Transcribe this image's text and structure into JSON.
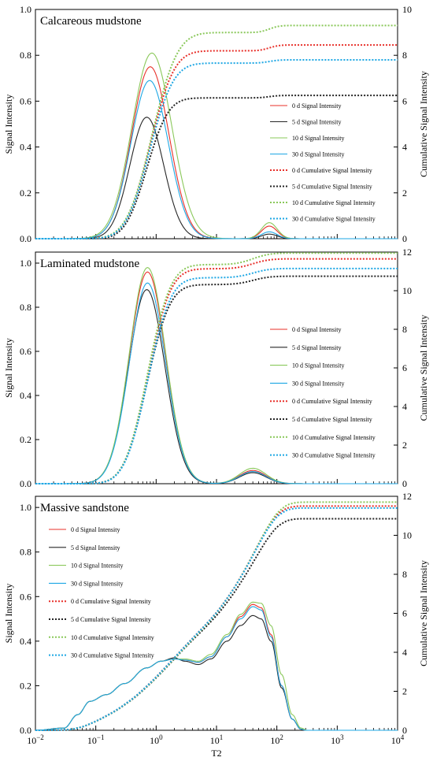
{
  "chart_data": {
    "type": "line",
    "xlabel": "T2",
    "xscale": "log",
    "xlim": [
      0.01,
      10000
    ],
    "x_ticks": [
      {
        "base": "10",
        "exp": "−2"
      },
      {
        "base": "10",
        "exp": "−1"
      },
      {
        "base": "10",
        "exp": "0"
      },
      {
        "base": "10",
        "exp": "1"
      },
      {
        "base": "10",
        "exp": "2"
      },
      {
        "base": "10",
        "exp": "3"
      },
      {
        "base": "10",
        "exp": "4"
      }
    ],
    "ylabel_left": "Signal Intensity",
    "ylabel_right": "Cumulative Signal Intensity",
    "series_colors": {
      "0 d": "#e8302a",
      "5 d": "#262626",
      "10 d": "#8ac85a",
      "30 d": "#1ea7e4"
    },
    "panels": [
      {
        "title": "Calcareous mudstone",
        "left_ticks": [
          "0.0",
          "0.2",
          "0.4",
          "0.6",
          "0.8",
          "1.0"
        ],
        "left_lim": [
          0,
          1.0
        ],
        "right_ticks": [
          "0",
          "2",
          "4",
          "6",
          "8",
          "10"
        ],
        "right_lim": [
          0,
          10
        ],
        "legend_position": "right-middle",
        "legend": [
          "0 d Signal Intensity",
          "5 d Signal Intensity",
          "10 d Signal Intensity",
          "30 d Signal Intensity",
          "0 d Cumulative Signal Intensity",
          "5 d Cumulative Signal Intensity",
          "10 d Cumulative Signal Intensity",
          "30 d Cumulative Signal Intensity"
        ],
        "signal": [
          {
            "name": "0 d Signal Intensity",
            "color_key": "0 d",
            "peaks": [
              {
                "center": 0.8,
                "amp": 0.75,
                "sigma": 0.31
              },
              {
                "center": 75,
                "amp": 0.055,
                "sigma": 0.13
              }
            ]
          },
          {
            "name": "5 d Signal Intensity",
            "color_key": "5 d",
            "peaks": [
              {
                "center": 0.7,
                "amp": 0.53,
                "sigma": 0.28
              },
              {
                "center": 75,
                "amp": 0.02,
                "sigma": 0.13
              }
            ]
          },
          {
            "name": "10 d Signal Intensity",
            "color_key": "10 d",
            "peaks": [
              {
                "center": 0.85,
                "amp": 0.81,
                "sigma": 0.33
              },
              {
                "center": 75,
                "amp": 0.07,
                "sigma": 0.13
              }
            ]
          },
          {
            "name": "30 d Signal Intensity",
            "color_key": "30 d",
            "peaks": [
              {
                "center": 0.78,
                "amp": 0.69,
                "sigma": 0.31
              },
              {
                "center": 75,
                "amp": 0.03,
                "sigma": 0.13
              }
            ]
          }
        ],
        "cumulative": [
          {
            "name": "0 d Cumulative Signal Intensity",
            "color_key": "0 d",
            "plateau1": 7.85,
            "final": 8.45
          },
          {
            "name": "5 d Cumulative Signal Intensity",
            "color_key": "5 d",
            "plateau1": 6.2,
            "final": 6.25
          },
          {
            "name": "10 d Cumulative Signal Intensity",
            "color_key": "10 d",
            "plateau1": 8.95,
            "final": 9.3
          },
          {
            "name": "30 d Cumulative Signal Intensity",
            "color_key": "30 d",
            "plateau1": 7.65,
            "final": 7.8
          }
        ]
      },
      {
        "title": "Laminated mudstone",
        "left_ticks": [
          "0.0",
          "0.2",
          "0.4",
          "0.6",
          "0.8",
          "1.0"
        ],
        "left_lim": [
          0,
          1.05
        ],
        "right_ticks": [
          "0",
          "2",
          "4",
          "6",
          "8",
          "10",
          "12"
        ],
        "right_lim": [
          0,
          12
        ],
        "legend_position": "right-middle",
        "legend": [
          "0 d Signal Intensity",
          "5 d Signal Intensity",
          "10 d Signal Intensity",
          "30 d Signal Intensity",
          "0 d Cumulative Signal Intensity",
          "5 d Cumulative Signal Intensity",
          "10 d Cumulative Signal Intensity",
          "30 d Cumulative Signal Intensity"
        ],
        "signal": [
          {
            "name": "0 d Signal Intensity",
            "color_key": "0 d",
            "peaks": [
              {
                "center": 0.72,
                "amp": 0.96,
                "sigma": 0.3
              },
              {
                "center": 40,
                "amp": 0.06,
                "sigma": 0.22
              }
            ]
          },
          {
            "name": "5 d Signal Intensity",
            "color_key": "5 d",
            "peaks": [
              {
                "center": 0.7,
                "amp": 0.88,
                "sigma": 0.3
              },
              {
                "center": 40,
                "amp": 0.05,
                "sigma": 0.22
              }
            ]
          },
          {
            "name": "10 d Signal Intensity",
            "color_key": "10 d",
            "peaks": [
              {
                "center": 0.72,
                "amp": 0.98,
                "sigma": 0.3
              },
              {
                "center": 40,
                "amp": 0.07,
                "sigma": 0.22
              }
            ]
          },
          {
            "name": "30 d Signal Intensity",
            "color_key": "30 d",
            "peaks": [
              {
                "center": 0.72,
                "amp": 0.91,
                "sigma": 0.3
              },
              {
                "center": 40,
                "amp": 0.055,
                "sigma": 0.22
              }
            ]
          }
        ],
        "cumulative": [
          {
            "name": "0 d Cumulative Signal Intensity",
            "color_key": "0 d",
            "plateau1": 11.0,
            "final": 11.65
          },
          {
            "name": "5 d Cumulative Signal Intensity",
            "color_key": "5 d",
            "plateau1": 10.2,
            "final": 10.75
          },
          {
            "name": "10 d Cumulative Signal Intensity",
            "color_key": "10 d",
            "plateau1": 11.3,
            "final": 11.95
          },
          {
            "name": "30 d Cumulative Signal Intensity",
            "color_key": "30 d",
            "plateau1": 10.6,
            "final": 11.15
          }
        ]
      },
      {
        "title": "Massive sandstone",
        "left_ticks": [
          "0.0",
          "0.2",
          "0.4",
          "0.6",
          "0.8",
          "1.0"
        ],
        "left_lim": [
          0,
          1.05
        ],
        "right_ticks": [
          "0",
          "2",
          "4",
          "6",
          "8",
          "10",
          "12"
        ],
        "right_lim": [
          0,
          12
        ],
        "legend_position": "left-middle",
        "legend": [
          "0 d Signal Intensity",
          "5 d Signal Intensity",
          "10 d Signal Intensity",
          "30 d Signal Intensity",
          "0 d Cumulative Signal Intensity",
          "5 d Cumulative Signal Intensity",
          "10 d Cumulative Signal Intensity",
          "30 d Cumulative Signal Intensity"
        ],
        "signal": [
          {
            "name": "0 d Signal Intensity",
            "color_key": "0 d",
            "points": [
              [
                0.01,
                0
              ],
              [
                0.03,
                0.01
              ],
              [
                0.05,
                0.07
              ],
              [
                0.08,
                0.13
              ],
              [
                0.15,
                0.16
              ],
              [
                0.3,
                0.21
              ],
              [
                0.7,
                0.28
              ],
              [
                1.2,
                0.31
              ],
              [
                2,
                0.32
              ],
              [
                3,
                0.315
              ],
              [
                5,
                0.305
              ],
              [
                8,
                0.33
              ],
              [
                15,
                0.42
              ],
              [
                25,
                0.51
              ],
              [
                40,
                0.565
              ],
              [
                55,
                0.55
              ],
              [
                80,
                0.43
              ],
              [
                120,
                0.2
              ],
              [
                180,
                0.05
              ],
              [
                250,
                0.005
              ],
              [
                300,
                0
              ],
              [
                10000,
                0
              ]
            ]
          },
          {
            "name": "5 d Signal Intensity",
            "color_key": "5 d",
            "points": [
              [
                0.01,
                0
              ],
              [
                0.03,
                0.01
              ],
              [
                0.05,
                0.07
              ],
              [
                0.08,
                0.13
              ],
              [
                0.15,
                0.16
              ],
              [
                0.3,
                0.21
              ],
              [
                0.7,
                0.28
              ],
              [
                1.2,
                0.31
              ],
              [
                2,
                0.325
              ],
              [
                3,
                0.31
              ],
              [
                5,
                0.295
              ],
              [
                8,
                0.32
              ],
              [
                15,
                0.4
              ],
              [
                25,
                0.47
              ],
              [
                40,
                0.515
              ],
              [
                55,
                0.5
              ],
              [
                80,
                0.4
              ],
              [
                120,
                0.19
              ],
              [
                180,
                0.05
              ],
              [
                250,
                0.005
              ],
              [
                300,
                0
              ],
              [
                10000,
                0
              ]
            ]
          },
          {
            "name": "10 d Signal Intensity",
            "color_key": "10 d",
            "points": [
              [
                0.01,
                0
              ],
              [
                0.03,
                0.01
              ],
              [
                0.05,
                0.07
              ],
              [
                0.08,
                0.13
              ],
              [
                0.15,
                0.16
              ],
              [
                0.3,
                0.21
              ],
              [
                0.7,
                0.28
              ],
              [
                1.2,
                0.31
              ],
              [
                2,
                0.32
              ],
              [
                3,
                0.32
              ],
              [
                5,
                0.31
              ],
              [
                8,
                0.34
              ],
              [
                15,
                0.43
              ],
              [
                25,
                0.52
              ],
              [
                40,
                0.575
              ],
              [
                55,
                0.57
              ],
              [
                80,
                0.47
              ],
              [
                120,
                0.25
              ],
              [
                180,
                0.07
              ],
              [
                250,
                0.01
              ],
              [
                320,
                0
              ],
              [
                10000,
                0
              ]
            ]
          },
          {
            "name": "30 d Signal Intensity",
            "color_key": "30 d",
            "points": [
              [
                0.01,
                0
              ],
              [
                0.03,
                0.01
              ],
              [
                0.05,
                0.07
              ],
              [
                0.08,
                0.13
              ],
              [
                0.15,
                0.16
              ],
              [
                0.3,
                0.21
              ],
              [
                0.7,
                0.28
              ],
              [
                1.2,
                0.31
              ],
              [
                2,
                0.32
              ],
              [
                3,
                0.315
              ],
              [
                5,
                0.305
              ],
              [
                8,
                0.33
              ],
              [
                15,
                0.42
              ],
              [
                25,
                0.5
              ],
              [
                40,
                0.555
              ],
              [
                55,
                0.54
              ],
              [
                80,
                0.42
              ],
              [
                120,
                0.2
              ],
              [
                180,
                0.05
              ],
              [
                250,
                0.005
              ],
              [
                300,
                0
              ],
              [
                10000,
                0
              ]
            ]
          }
        ],
        "cumulative": [
          {
            "name": "0 d Cumulative Signal Intensity",
            "color_key": "0 d",
            "final": 11.5
          },
          {
            "name": "5 d Cumulative Signal Intensity",
            "color_key": "5 d",
            "final": 10.85
          },
          {
            "name": "10 d Cumulative Signal Intensity",
            "color_key": "10 d",
            "final": 11.7
          },
          {
            "name": "30 d Cumulative Signal Intensity",
            "color_key": "30 d",
            "final": 11.4
          }
        ]
      }
    ]
  }
}
